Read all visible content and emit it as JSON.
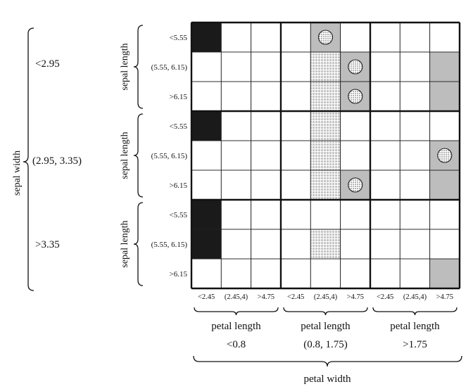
{
  "sepal_width": {
    "label": "sepal width",
    "groups": [
      "<2.95",
      "(2.95, 3.35)",
      ">3.35"
    ]
  },
  "sepal_length": {
    "label": "sepal length",
    "bins": [
      "<5.55",
      "(5.55, 6.15)",
      ">6.15"
    ]
  },
  "petal_width": {
    "label": "petal width",
    "groups": [
      "<0.8",
      "(0.8, 1.75)",
      ">1.75"
    ]
  },
  "petal_length": {
    "label": "petal length",
    "bins": [
      "<2.45",
      "(2.45,4)",
      ">4.75"
    ]
  },
  "legend_colors": {
    "black": "#1a1a1a",
    "gray": "#bdbdbd",
    "hatched": "#c8c8c8",
    "white": "#ffffff"
  },
  "grid": {
    "cells": [
      "BWWWGWWWW",
      "WWWWHMWWG",
      "WWWWHMWWG",
      "BWWWHWWWW",
      "WWWWHWWWM",
      "WWWWHMWWG",
      "BWWWWWWWW",
      "BWWWHWWWW",
      "WWWWWWWWG"
    ],
    "circle_cells": [
      [
        0,
        4
      ],
      [
        1,
        5
      ],
      [
        2,
        5
      ],
      [
        4,
        8
      ],
      [
        5,
        5
      ]
    ]
  }
}
